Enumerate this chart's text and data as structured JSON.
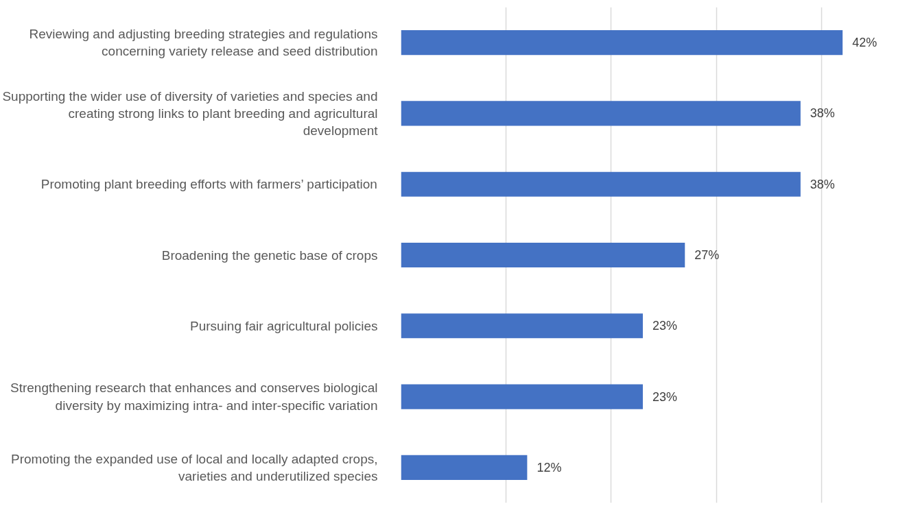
{
  "chart_data": {
    "type": "bar",
    "orientation": "horizontal",
    "categories": [
      "Reviewing and adjusting breeding strategies and regulations concerning variety release and seed distribution",
      "Supporting the wider use of diversity of varieties and species and creating strong links to plant breeding and agricultural development",
      "Promoting plant breeding efforts with farmers’ participation",
      "Broadening the genetic base of crops",
      "Pursuing fair agricultural policies",
      "Strengthening research that enhances and conserves biological diversity by maximizing intra- and inter-specific variation",
      "Promoting the expanded use of local and locally adapted crops, varieties and underutilized species"
    ],
    "values": [
      42,
      38,
      38,
      27,
      23,
      23,
      12
    ],
    "value_labels": [
      "42%",
      "38%",
      "38%",
      "27%",
      "23%",
      "23%",
      "12%"
    ],
    "color": "#4472c4",
    "grid": "x",
    "tick_labels": "y"
  }
}
